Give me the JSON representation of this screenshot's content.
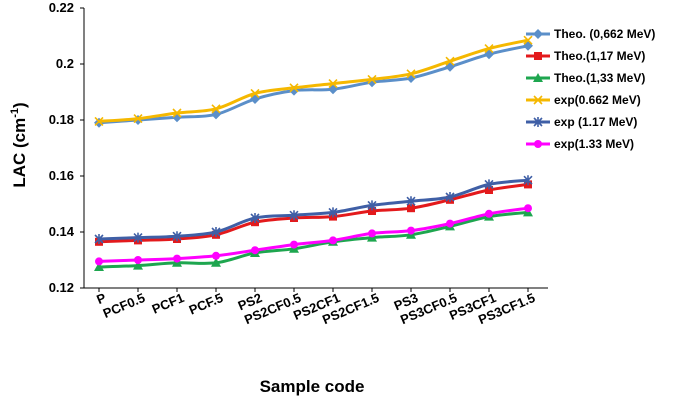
{
  "chart_data": {
    "type": "line",
    "title": "",
    "xlabel": "Sample code",
    "ylabel": "LAC (cm",
    "ylabel_sup": "-1",
    "ylabel_close": ")",
    "ylim": [
      0.12,
      0.22
    ],
    "yticks": [
      "0.12",
      "0.14",
      "0.16",
      "0.18",
      "0.2",
      "0.22"
    ],
    "grid": false,
    "legend_position": "right",
    "categories": [
      "P",
      "PCF0.5",
      "PCF1",
      "PCF.5",
      "PS2",
      "PS2CF0.5",
      "PS2CF1",
      "PS2CF1.5",
      "PS3",
      "PS3CF0.5",
      "PS3CF1",
      "PS3CF1.5"
    ],
    "series": [
      {
        "name": "Theo. (0,662 MeV)",
        "color": "#5b8fc9",
        "marker": "diamond",
        "values": [
          0.179,
          0.18,
          0.181,
          0.182,
          0.1875,
          0.1905,
          0.191,
          0.1935,
          0.195,
          0.199,
          0.2035,
          0.2065
        ]
      },
      {
        "name": "Theo.(1,17 MeV)",
        "color": "#e31a1c",
        "marker": "square",
        "values": [
          0.1365,
          0.137,
          0.1375,
          0.139,
          0.1435,
          0.145,
          0.1455,
          0.1475,
          0.1485,
          0.1515,
          0.155,
          0.157
        ]
      },
      {
        "name": "Theo.(1,33 MeV)",
        "color": "#1ea64f",
        "marker": "triangle",
        "values": [
          0.1275,
          0.128,
          0.129,
          0.129,
          0.1325,
          0.134,
          0.1365,
          0.138,
          0.139,
          0.142,
          0.1455,
          0.147
        ]
      },
      {
        "name": "exp(0.662 MeV)",
        "color": "#f5b800",
        "marker": "x",
        "values": [
          0.1795,
          0.1805,
          0.1825,
          0.184,
          0.1895,
          0.1915,
          0.193,
          0.1945,
          0.1965,
          0.201,
          0.2055,
          0.2085
        ]
      },
      {
        "name": "exp (1.17 MeV)",
        "color": "#3f5fa6",
        "marker": "star",
        "values": [
          0.1375,
          0.138,
          0.1385,
          0.14,
          0.145,
          0.146,
          0.147,
          0.1495,
          0.151,
          0.1525,
          0.157,
          0.1585
        ]
      },
      {
        "name": "exp(1.33 MeV)",
        "color": "#ff00ff",
        "marker": "circle",
        "values": [
          0.1295,
          0.13,
          0.1305,
          0.1315,
          0.1335,
          0.1355,
          0.137,
          0.1395,
          0.1405,
          0.143,
          0.1465,
          0.1485
        ]
      }
    ]
  }
}
